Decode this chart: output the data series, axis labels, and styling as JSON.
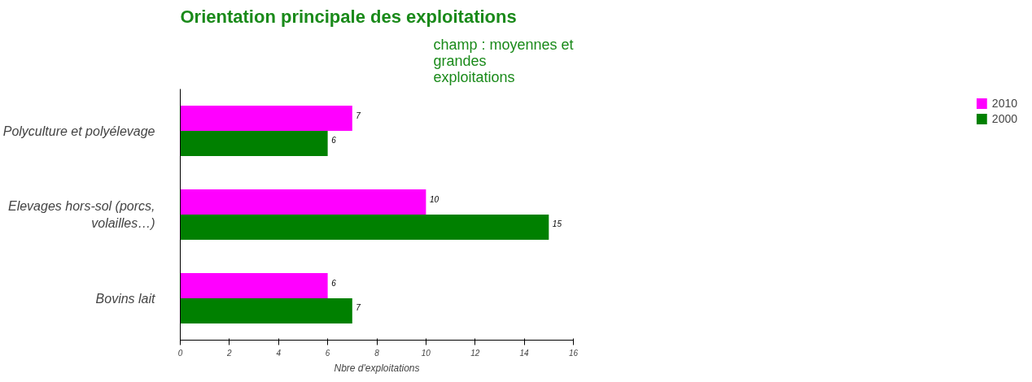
{
  "chart_data": {
    "type": "bar",
    "orientation": "horizontal",
    "title": "Orientation principale des exploitations",
    "annotations": [
      "champ : moyennes et grandes exploitations"
    ],
    "xlabel": "Nbre d'exploitations",
    "categories": [
      "Polyculture et polyélevage",
      "Elevages hors-sol (porcs, volailles…)",
      "Bovins lait"
    ],
    "series": [
      {
        "name": "2010",
        "color": "#ff00ff",
        "values": [
          7,
          10,
          6
        ]
      },
      {
        "name": "2000",
        "color": "#008000",
        "values": [
          6,
          15,
          7
        ]
      }
    ],
    "xlim": [
      0,
      16
    ],
    "xticks": [
      0,
      2,
      4,
      6,
      8,
      10,
      12,
      14,
      16
    ],
    "data_labels": true,
    "grid": false,
    "legend": "right"
  }
}
